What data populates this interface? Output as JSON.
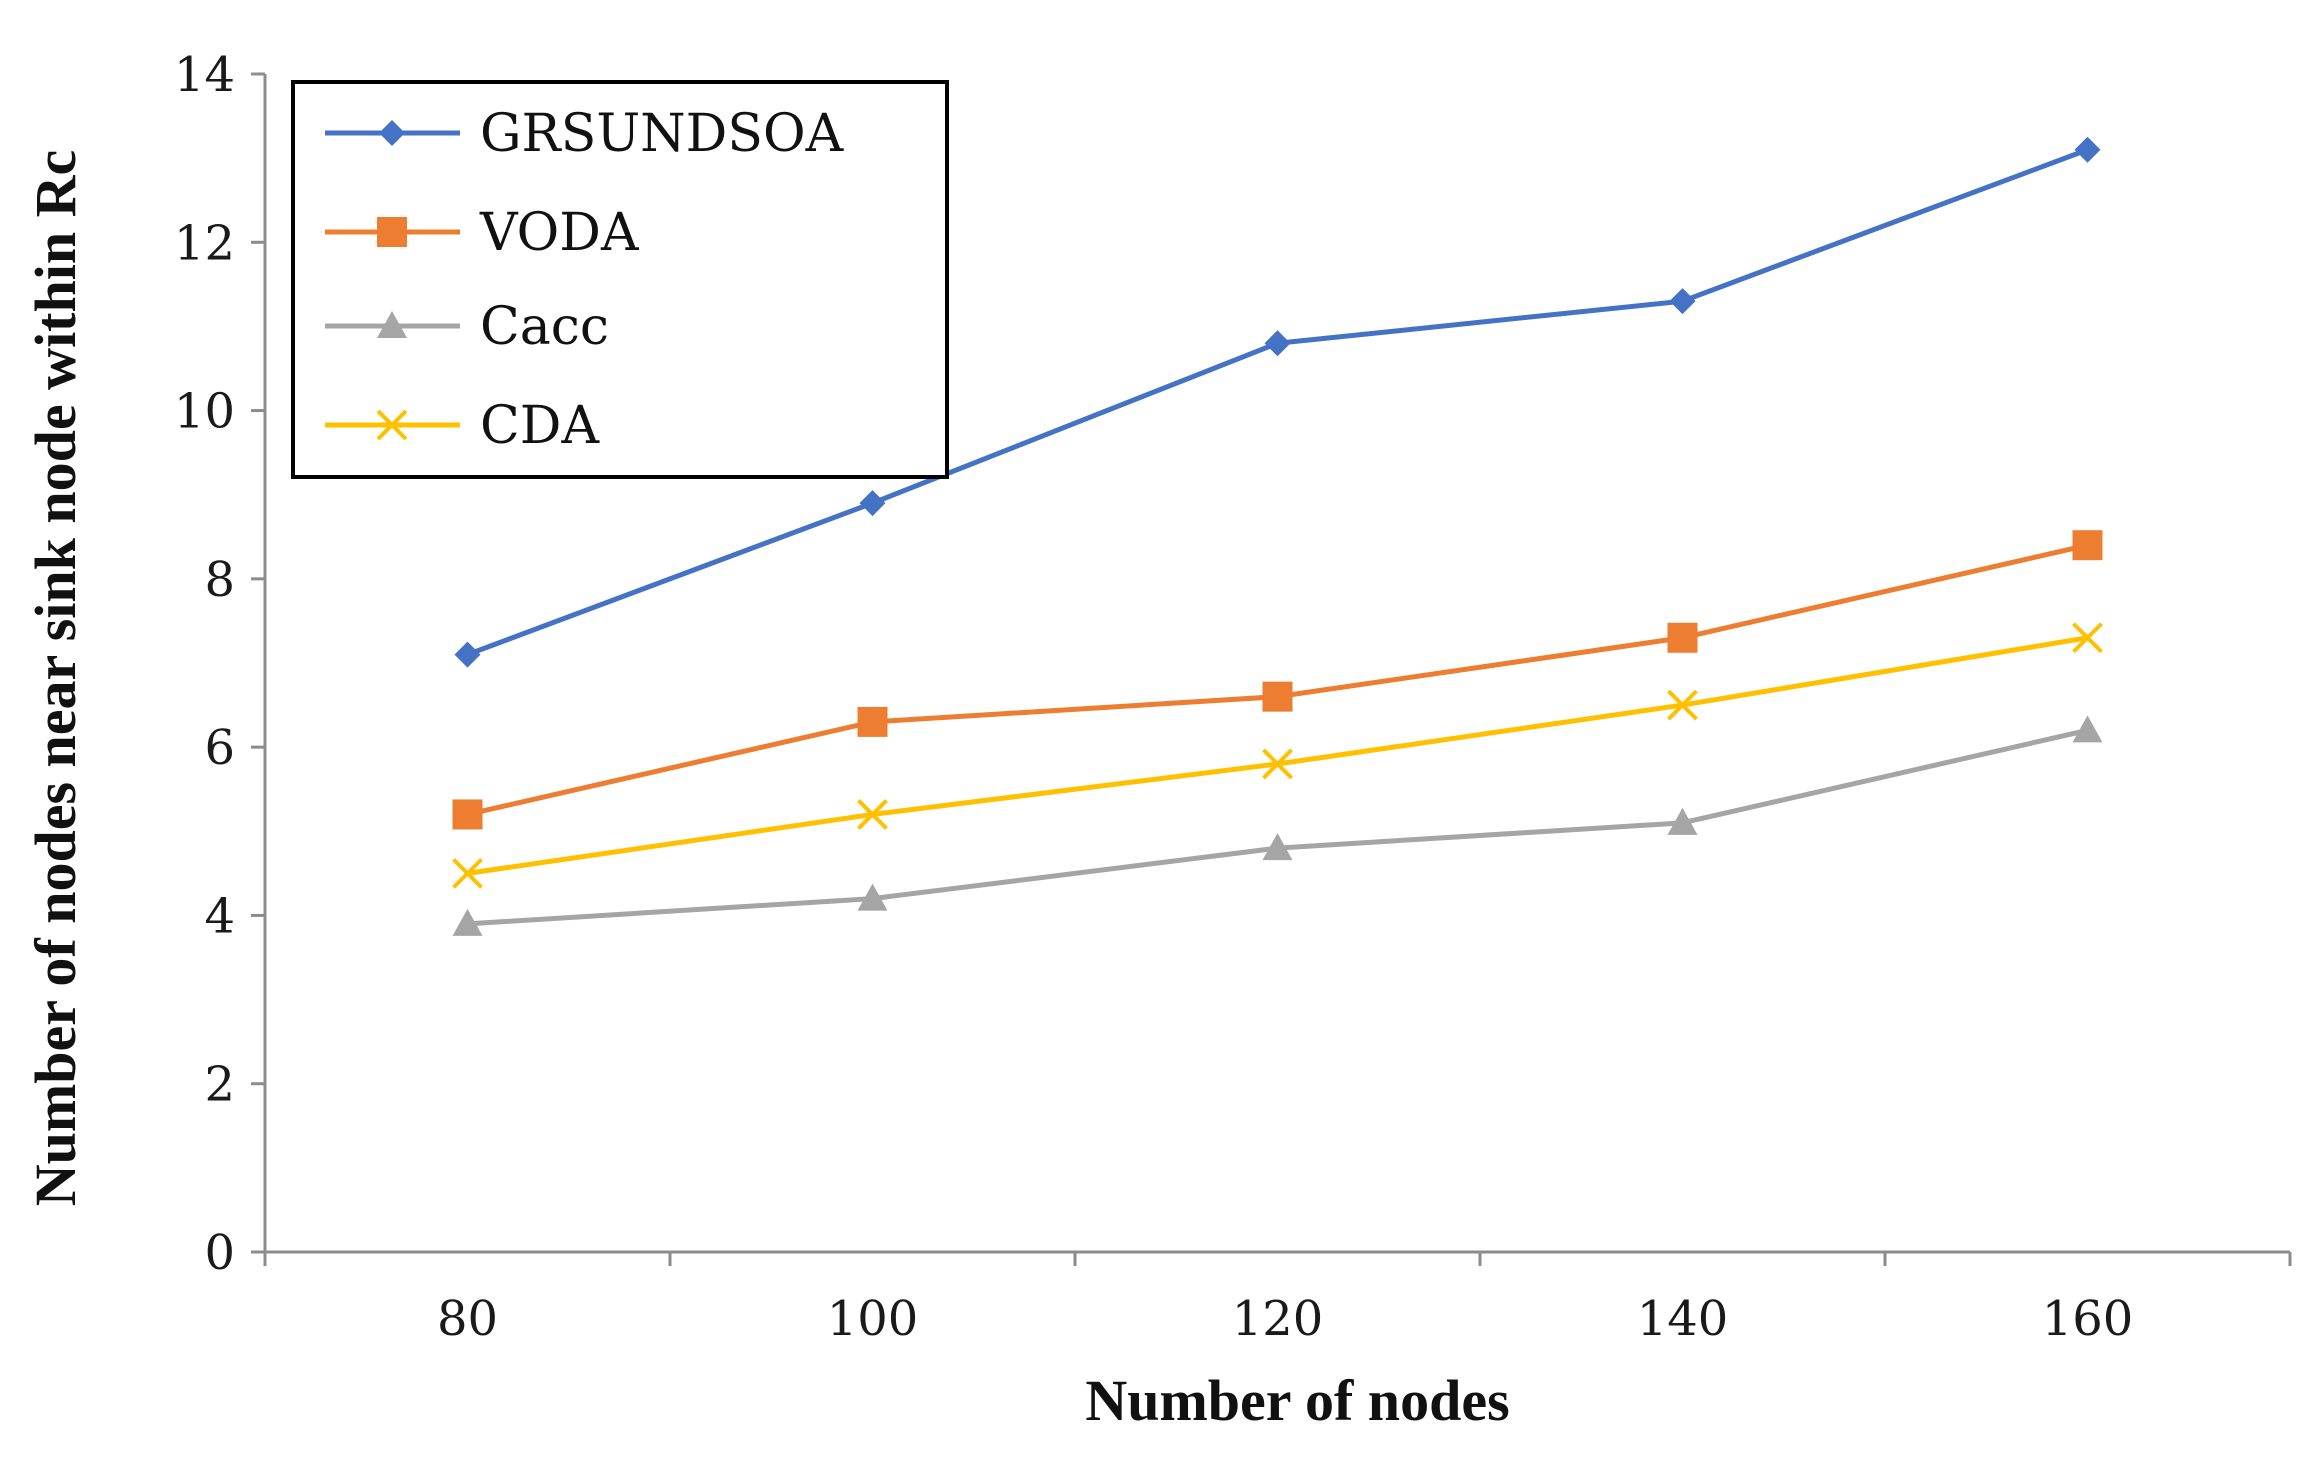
{
  "chart_data": {
    "type": "line",
    "title": "",
    "xlabel": "Number of nodes",
    "ylabel": "Number of nodes near sink node within Rc",
    "categories": [
      "80",
      "100",
      "120",
      "140",
      "160"
    ],
    "x": [
      80,
      100,
      120,
      140,
      160
    ],
    "xlim": [
      70,
      170
    ],
    "ylim": [
      0,
      14
    ],
    "yticks": [
      "0",
      "2",
      "4",
      "6",
      "8",
      "10",
      "12",
      "14"
    ],
    "grid": false,
    "legend_position": "top-left",
    "series": [
      {
        "name": "GRSUNDSOA",
        "marker": "diamond",
        "color": "#4472C4",
        "values": [
          7.1,
          8.9,
          10.8,
          11.3,
          13.1
        ]
      },
      {
        "name": "VODA",
        "marker": "square",
        "color": "#ED7D31",
        "values": [
          5.2,
          6.3,
          6.6,
          7.3,
          8.4
        ]
      },
      {
        "name": "Cacc",
        "marker": "triangle",
        "color": "#A5A5A5",
        "values": [
          3.9,
          4.2,
          4.8,
          5.1,
          6.2
        ]
      },
      {
        "name": "CDA",
        "marker": "x",
        "color": "#FFC000",
        "values": [
          4.5,
          5.2,
          5.8,
          6.5,
          7.3
        ]
      }
    ]
  }
}
